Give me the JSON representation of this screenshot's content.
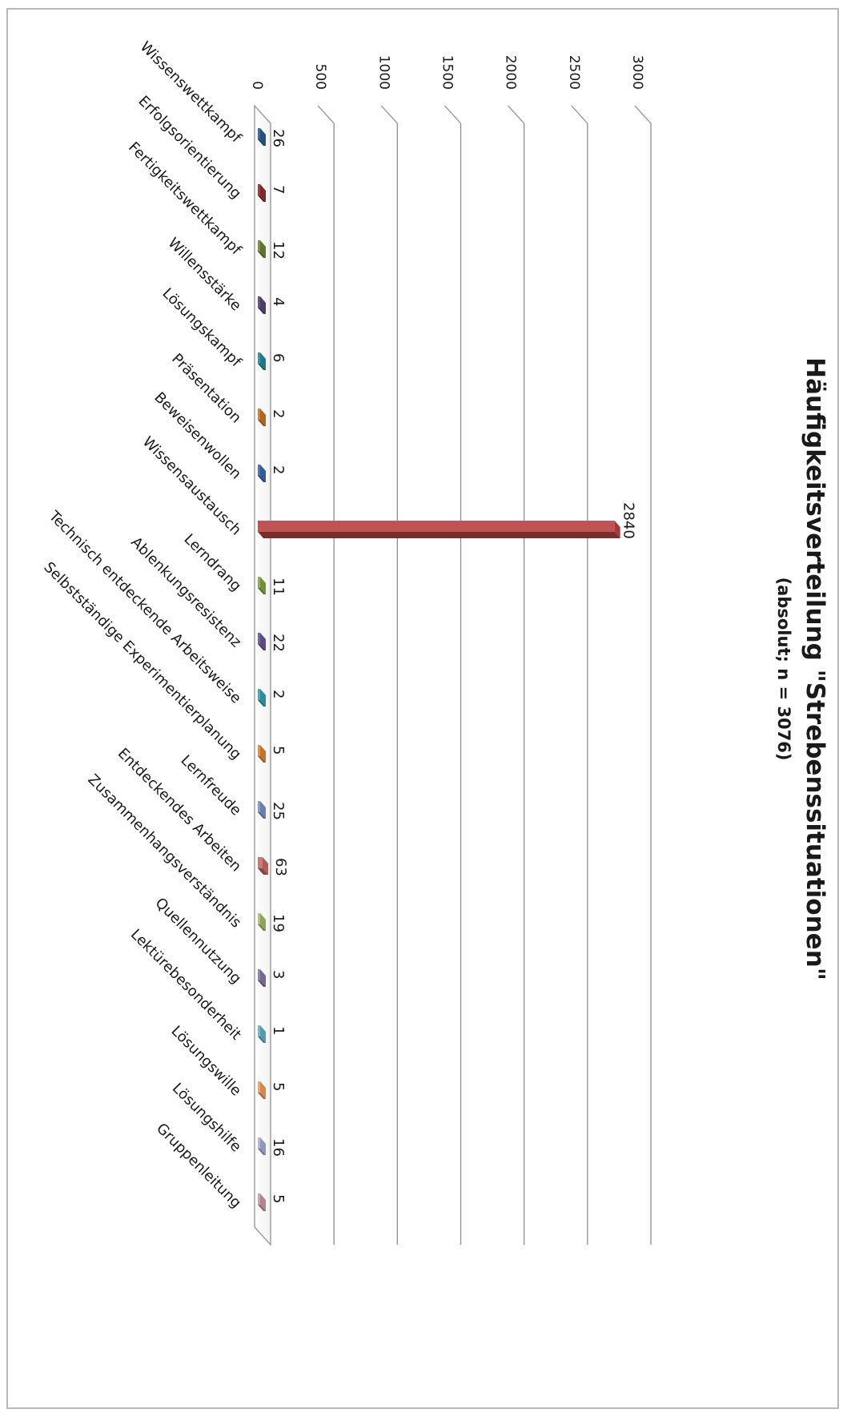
{
  "chart_data": {
    "type": "bar",
    "orientation": "vertical (page rotated 90° clockwise)",
    "style": "3d-clustered-column",
    "title": "Häufigkeitsverteilung \"Strebenssituationen\"",
    "subtitle": "(absolut; n = 3076)",
    "ylim": [
      0,
      3000
    ],
    "y_ticks": [
      "0",
      "500",
      "1000",
      "1500",
      "2000",
      "2500",
      "3000"
    ],
    "grid": true,
    "legend": "none",
    "categories": [
      "Wissenswettkampf",
      "Erfolgsorientierung",
      "Fertigkeitswettkampf",
      "Willensstärke",
      "Lösungskampf",
      "Präsentation",
      "Beweisenwollen",
      "Wissensaustausch",
      "Lerndrang",
      "Ablenkungsresistenz",
      "Technisch entdeckende Arbeitsweise",
      "Selbstständige Experimentierplanung",
      "Lernfreude",
      "Entdeckendes Arbeiten",
      "Zusammenhangsverständnis",
      "Quellennutzung",
      "Lektürebesonderheit",
      "Lösungswille",
      "Lösungshilfe",
      "Gruppenleitung"
    ],
    "values": [
      26,
      7,
      12,
      4,
      6,
      2,
      2,
      2840,
      11,
      22,
      2,
      5,
      25,
      63,
      19,
      3,
      1,
      5,
      16,
      5
    ],
    "value_labels": [
      "26",
      "7",
      "12",
      "4",
      "6",
      "2",
      "2",
      "2840",
      "11",
      "22",
      "2",
      "5",
      "25",
      "63",
      "19",
      "3",
      "1",
      "5",
      "16",
      "5"
    ],
    "colors": [
      "#2f5d8e",
      "#8e3230",
      "#6f8a3a",
      "#5a467a",
      "#2f8aa0",
      "#c9792e",
      "#3d6aa8",
      "#b84644",
      "#85a84a",
      "#6a5a98",
      "#3aa3b8",
      "#e08a3a",
      "#7d96c8",
      "#c86e6c",
      "#a8c070",
      "#8a7aaa",
      "#6ab4c8",
      "#f0a268",
      "#aab4d8",
      "#caa0a0"
    ]
  }
}
